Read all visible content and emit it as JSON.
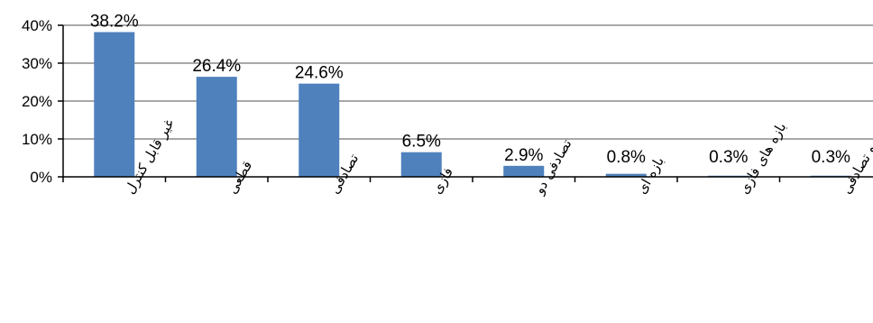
{
  "chart_data": {
    "type": "bar",
    "categories": [
      "غیر قابل کنترل",
      "قطعی",
      "تصادفی",
      "فازی",
      "تصادفی دو",
      "بازه ای",
      "بازه های فازی",
      "فازی و تصادفی"
    ],
    "values": [
      38.2,
      26.4,
      24.6,
      6.5,
      2.9,
      0.8,
      0.3,
      0.3
    ],
    "data_labels": [
      "38.2%",
      "26.4%",
      "24.6%",
      "6.5%",
      "2.9%",
      "0.8%",
      "0.3%",
      "0.3%"
    ],
    "y_ticks": [
      "0%",
      "10%",
      "20%",
      "30%",
      "40%"
    ],
    "ylim": [
      0,
      40
    ],
    "grid": true,
    "colors": {
      "bar": "#4f81bd",
      "grid": "#8c8c8c",
      "axis": "#000000"
    }
  }
}
